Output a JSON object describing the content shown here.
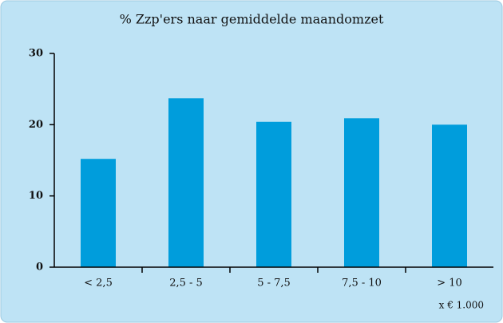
{
  "chart_data": {
    "type": "bar",
    "title": "% Zzp'ers naar gemiddelde maandomzet",
    "categories": [
      "< 2,5",
      "2,5 - 5",
      "5 - 7,5",
      "7,5 - 10",
      "> 10"
    ],
    "values": [
      15.2,
      23.7,
      20.4,
      20.9,
      20.0
    ],
    "color": "#009ddc",
    "ylim": [
      0,
      30
    ],
    "yticks": [
      0,
      10,
      20,
      30
    ],
    "grid": false,
    "annotation": "x € 1.000"
  }
}
